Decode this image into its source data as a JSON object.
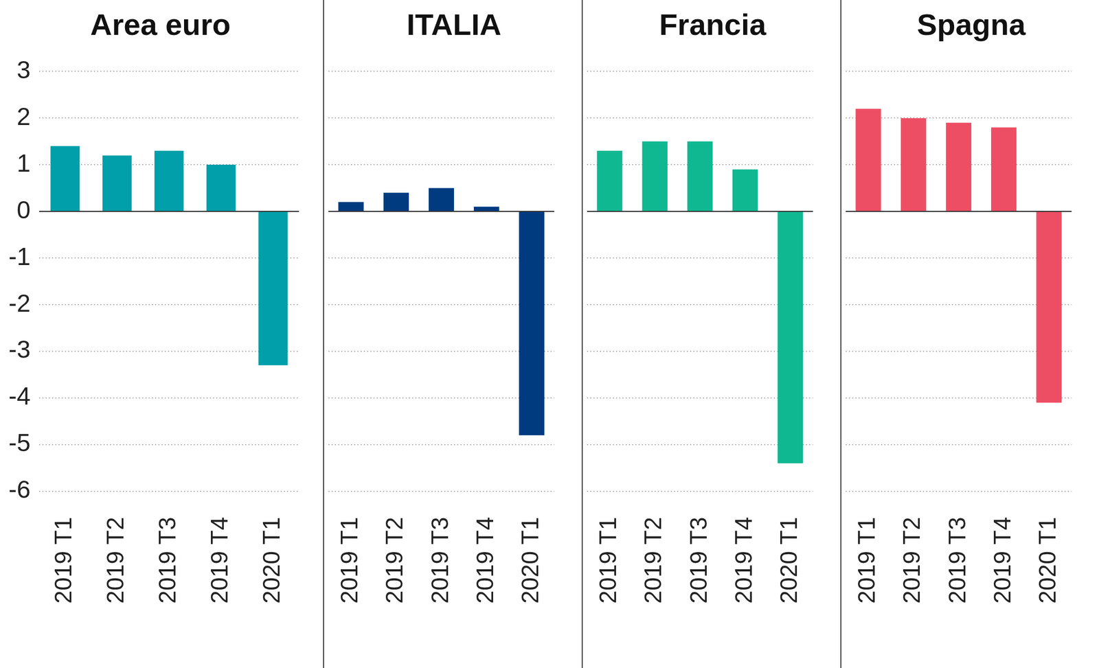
{
  "chart_data": [
    {
      "type": "bar",
      "title": "Area euro",
      "categories": [
        "2019 T1",
        "2019 T2",
        "2019 T3",
        "2019 T4",
        "2020 T1"
      ],
      "values": [
        1.4,
        1.2,
        1.3,
        1.0,
        -3.3
      ],
      "color": "#009fa9",
      "ylim": [
        -6,
        3
      ],
      "yticks": [
        -6,
        -5,
        -4,
        -3,
        -2,
        -1,
        0,
        1,
        2,
        3
      ],
      "grid": true
    },
    {
      "type": "bar",
      "title": "ITALIA",
      "categories": [
        "2019 T1",
        "2019 T2",
        "2019 T3",
        "2019 T4",
        "2020 T1"
      ],
      "values": [
        0.2,
        0.4,
        0.5,
        0.1,
        -4.8
      ],
      "color": "#003b7f",
      "ylim": [
        -6,
        3
      ],
      "yticks": [
        -6,
        -5,
        -4,
        -3,
        -2,
        -1,
        0,
        1,
        2,
        3
      ],
      "grid": true,
      "tick_labels": "x"
    },
    {
      "type": "bar",
      "title": "Francia",
      "categories": [
        "2019 T1",
        "2019 T2",
        "2019 T3",
        "2019 T4",
        "2020 T1"
      ],
      "values": [
        1.3,
        1.5,
        1.5,
        0.9,
        -5.4
      ],
      "color": "#10b891",
      "ylim": [
        -6,
        3
      ],
      "yticks": [
        -6,
        -5,
        -4,
        -3,
        -2,
        -1,
        0,
        1,
        2,
        3
      ],
      "grid": true,
      "tick_labels": "x"
    },
    {
      "type": "bar",
      "title": "Spagna",
      "categories": [
        "2019 T1",
        "2019 T2",
        "2019 T3",
        "2019 T4",
        "2020 T1"
      ],
      "values": [
        2.2,
        2.0,
        1.9,
        1.8,
        -4.1
      ],
      "color": "#ee4e64",
      "ylim": [
        -6,
        3
      ],
      "yticks": [
        -6,
        -5,
        -4,
        -3,
        -2,
        -1,
        0,
        1,
        2,
        3
      ],
      "grid": true,
      "tick_labels": "x"
    }
  ]
}
